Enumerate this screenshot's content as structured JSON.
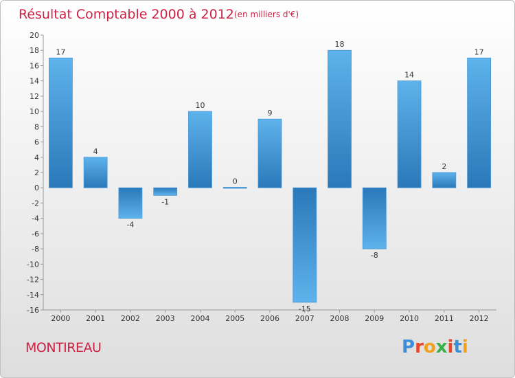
{
  "chart_data": {
    "type": "bar",
    "title": "Résultat Comptable 2000 à 2012",
    "subtitle": "(en milliers d'€)",
    "categories": [
      "2000",
      "2001",
      "2002",
      "2003",
      "2004",
      "2005",
      "2006",
      "2007",
      "2008",
      "2009",
      "2010",
      "2011",
      "2012"
    ],
    "values": [
      17,
      4,
      -4,
      -1,
      10,
      0,
      9,
      -15,
      18,
      -8,
      14,
      2,
      17
    ],
    "labels": [
      "17",
      "4",
      "-4",
      "-1",
      "10",
      "0",
      "9",
      "-15",
      "18",
      "-8",
      "14",
      "2",
      "17"
    ],
    "ylim": [
      -16,
      20
    ],
    "yticks": [
      20,
      18,
      16,
      14,
      12,
      10,
      8,
      6,
      4,
      2,
      0,
      -2,
      -4,
      -6,
      -8,
      -10,
      -12,
      -14,
      -16
    ],
    "xlabel": "",
    "ylabel": "",
    "grid": false,
    "bar_color_light": "#5aaee8",
    "bar_color_dark": "#2a78b8"
  },
  "footer": {
    "city": "MONTIREAU",
    "logo_letters": [
      "P",
      "r",
      "o",
      "x",
      "i",
      "t",
      "i"
    ],
    "logo_colors": [
      "#3a8fd8",
      "#e8462a",
      "#f0a020",
      "#3ab04a",
      "#e8462a",
      "#3a8fd8",
      "#f0a020"
    ]
  },
  "colors": {
    "accent": "#cc2244"
  }
}
